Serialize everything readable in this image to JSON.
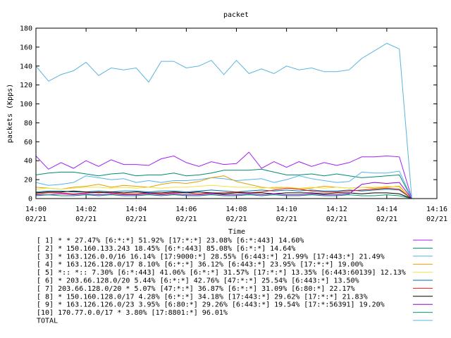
{
  "chart_data": {
    "type": "line",
    "title": "packet",
    "xlabel": "Time",
    "ylabel": "packets (Kpps)",
    "ylim": [
      0,
      180
    ],
    "yticks": [
      0,
      20,
      40,
      60,
      80,
      100,
      120,
      140,
      160,
      180
    ],
    "xlim": [
      "14:00",
      "14:16"
    ],
    "xticks": [
      {
        "time": "14:00",
        "date": "02/21"
      },
      {
        "time": "14:02",
        "date": "02/21"
      },
      {
        "time": "14:04",
        "date": "02/21"
      },
      {
        "time": "14:06",
        "date": "02/21"
      },
      {
        "time": "14:08",
        "date": "02/21"
      },
      {
        "time": "14:10",
        "date": "02/21"
      },
      {
        "time": "14:12",
        "date": "02/21"
      },
      {
        "time": "14:14",
        "date": "02/21"
      },
      {
        "time": "14:16",
        "date": "02/21"
      }
    ],
    "grid": false,
    "legend_position": "bottom",
    "x": [
      "14:00:00",
      "14:00:30",
      "14:01:00",
      "14:01:30",
      "14:02:00",
      "14:02:30",
      "14:03:00",
      "14:03:30",
      "14:04:00",
      "14:04:30",
      "14:05:00",
      "14:05:30",
      "14:06:00",
      "14:06:30",
      "14:07:00",
      "14:07:30",
      "14:08:00",
      "14:08:30",
      "14:09:00",
      "14:09:30",
      "14:10:00",
      "14:10:30",
      "14:11:00",
      "14:11:30",
      "14:12:00",
      "14:12:30",
      "14:13:00",
      "14:13:30",
      "14:14:00",
      "14:14:30",
      "14:15:00"
    ],
    "series": [
      {
        "name": "[ 1] * * 27.47%  [6:*:*] 51.92% [17:*:*] 23.08% [6:*:443] 14.60%",
        "color": "#a020f0",
        "values": [
          45,
          31,
          38,
          32,
          40,
          34,
          41,
          36,
          36,
          35,
          42,
          45,
          38,
          34,
          39,
          36,
          37,
          49,
          32,
          39,
          33,
          39,
          34,
          38,
          35,
          38,
          44,
          44,
          45,
          44,
          0
        ]
      },
      {
        "name": "[ 2] * 150.160.133.243 18.45%  [6:*:443] 85.08% [6:*:*] 14.64%",
        "color": "#008b6e",
        "values": [
          25,
          27,
          28,
          28,
          26,
          24,
          26,
          27,
          24,
          25,
          25,
          27,
          24,
          25,
          27,
          30,
          30,
          30,
          31,
          28,
          25,
          25,
          26,
          24,
          26,
          24,
          22,
          23,
          24,
          25,
          0
        ]
      },
      {
        "name": "[ 3] * 163.126.0.0/16 16.14%  [17:9000:*] 28.55% [6:443:*] 21.99% [17:443:*] 21.49%",
        "color": "#56b4e9",
        "values": [
          17,
          14,
          15,
          17,
          24,
          22,
          20,
          21,
          17,
          19,
          17,
          19,
          19,
          20,
          22,
          21,
          19,
          20,
          21,
          17,
          20,
          24,
          21,
          19,
          17,
          18,
          28,
          27,
          27,
          29,
          0
        ]
      },
      {
        "name": "[ 4] * 163.126.128.0/17 8.10%  [6:*:*] 36.12% [6:443:*] 23.95% [17:*:*] 19.00%",
        "color": "#e69f00",
        "values": [
          12,
          11,
          10,
          12,
          13,
          15,
          12,
          14,
          13,
          12,
          15,
          17,
          16,
          18,
          22,
          24,
          18,
          15,
          12,
          11,
          12,
          10,
          11,
          13,
          12,
          11,
          12,
          11,
          12,
          13,
          0
        ]
      },
      {
        "name": "[ 5] *:: *:: 7.30%  [6:*:443] 41.06% [6:*:*] 31.57% [17:*:*] 13.35% [6:443:60139] 12.13%",
        "color": "#f0e442",
        "values": [
          10,
          11,
          10,
          11,
          12,
          12,
          11,
          12,
          11,
          12,
          11,
          12,
          12,
          13,
          14,
          13,
          12,
          12,
          11,
          12,
          12,
          11,
          12,
          11,
          12,
          11,
          12,
          12,
          13,
          12,
          0
        ]
      },
      {
        "name": "[ 6] * 203.66.128.0/20 5.44%  [6:*:*] 42.76% [47:*:*] 25.54% [6:443:*] 13.50%",
        "color": "#0072b2",
        "values": [
          7,
          8,
          8,
          7,
          7,
          8,
          7,
          8,
          8,
          7,
          8,
          8,
          7,
          8,
          9,
          8,
          7,
          8,
          9,
          8,
          9,
          8,
          9,
          8,
          8,
          9,
          8,
          9,
          10,
          9,
          0
        ]
      },
      {
        "name": "[ 7] 203.66.128.0/20 * 5.07%  [47:*:*] 36.87% [6:*:*] 31.09% [6:80:*] 22.17%",
        "color": "#e51e10",
        "values": [
          5,
          6,
          6,
          5,
          6,
          7,
          6,
          5,
          5,
          6,
          5,
          6,
          6,
          5,
          6,
          6,
          7,
          6,
          7,
          9,
          11,
          10,
          8,
          7,
          7,
          8,
          9,
          10,
          11,
          10,
          0
        ]
      },
      {
        "name": "[ 8] * 150.160.128.0/17 4.28%  [6:*:*] 34.18% [17:443:*] 29.62% [17:*:*] 21.83%",
        "color": "#000000",
        "values": [
          6,
          7,
          7,
          8,
          7,
          6,
          7,
          6,
          7,
          6,
          6,
          7,
          6,
          7,
          6,
          5,
          6,
          6,
          6,
          5,
          6,
          6,
          6,
          5,
          6,
          6,
          5,
          6,
          6,
          5,
          0
        ]
      },
      {
        "name": "[ 9] * 163.126.126.0/23 3.95%  [6:80:*] 29.26% [6:443:*] 19.54% [17:*:56391] 19.20%",
        "color": "#9400d3",
        "values": [
          4,
          4,
          5,
          4,
          5,
          4,
          5,
          4,
          4,
          5,
          4,
          5,
          4,
          4,
          5,
          4,
          4,
          5,
          4,
          5,
          4,
          4,
          5,
          4,
          4,
          5,
          15,
          17,
          16,
          17,
          0
        ]
      },
      {
        "name": "[10] 170.77.0.0/17 * 3.80%  [17:8801:*] 96.01%",
        "color": "#009e73",
        "values": [
          3,
          4,
          3,
          3,
          4,
          3,
          4,
          3,
          3,
          4,
          3,
          4,
          3,
          3,
          4,
          3,
          3,
          4,
          3,
          4,
          3,
          3,
          4,
          3,
          3,
          4,
          3,
          3,
          4,
          3,
          0
        ]
      },
      {
        "name": "TOTAL",
        "color": "#5ab4de",
        "values": [
          140,
          124,
          131,
          135,
          144,
          130,
          138,
          136,
          138,
          123,
          145,
          145,
          138,
          140,
          146,
          131,
          146,
          132,
          137,
          132,
          140,
          136,
          138,
          134,
          134,
          136,
          148,
          156,
          164,
          158,
          0
        ]
      }
    ]
  }
}
